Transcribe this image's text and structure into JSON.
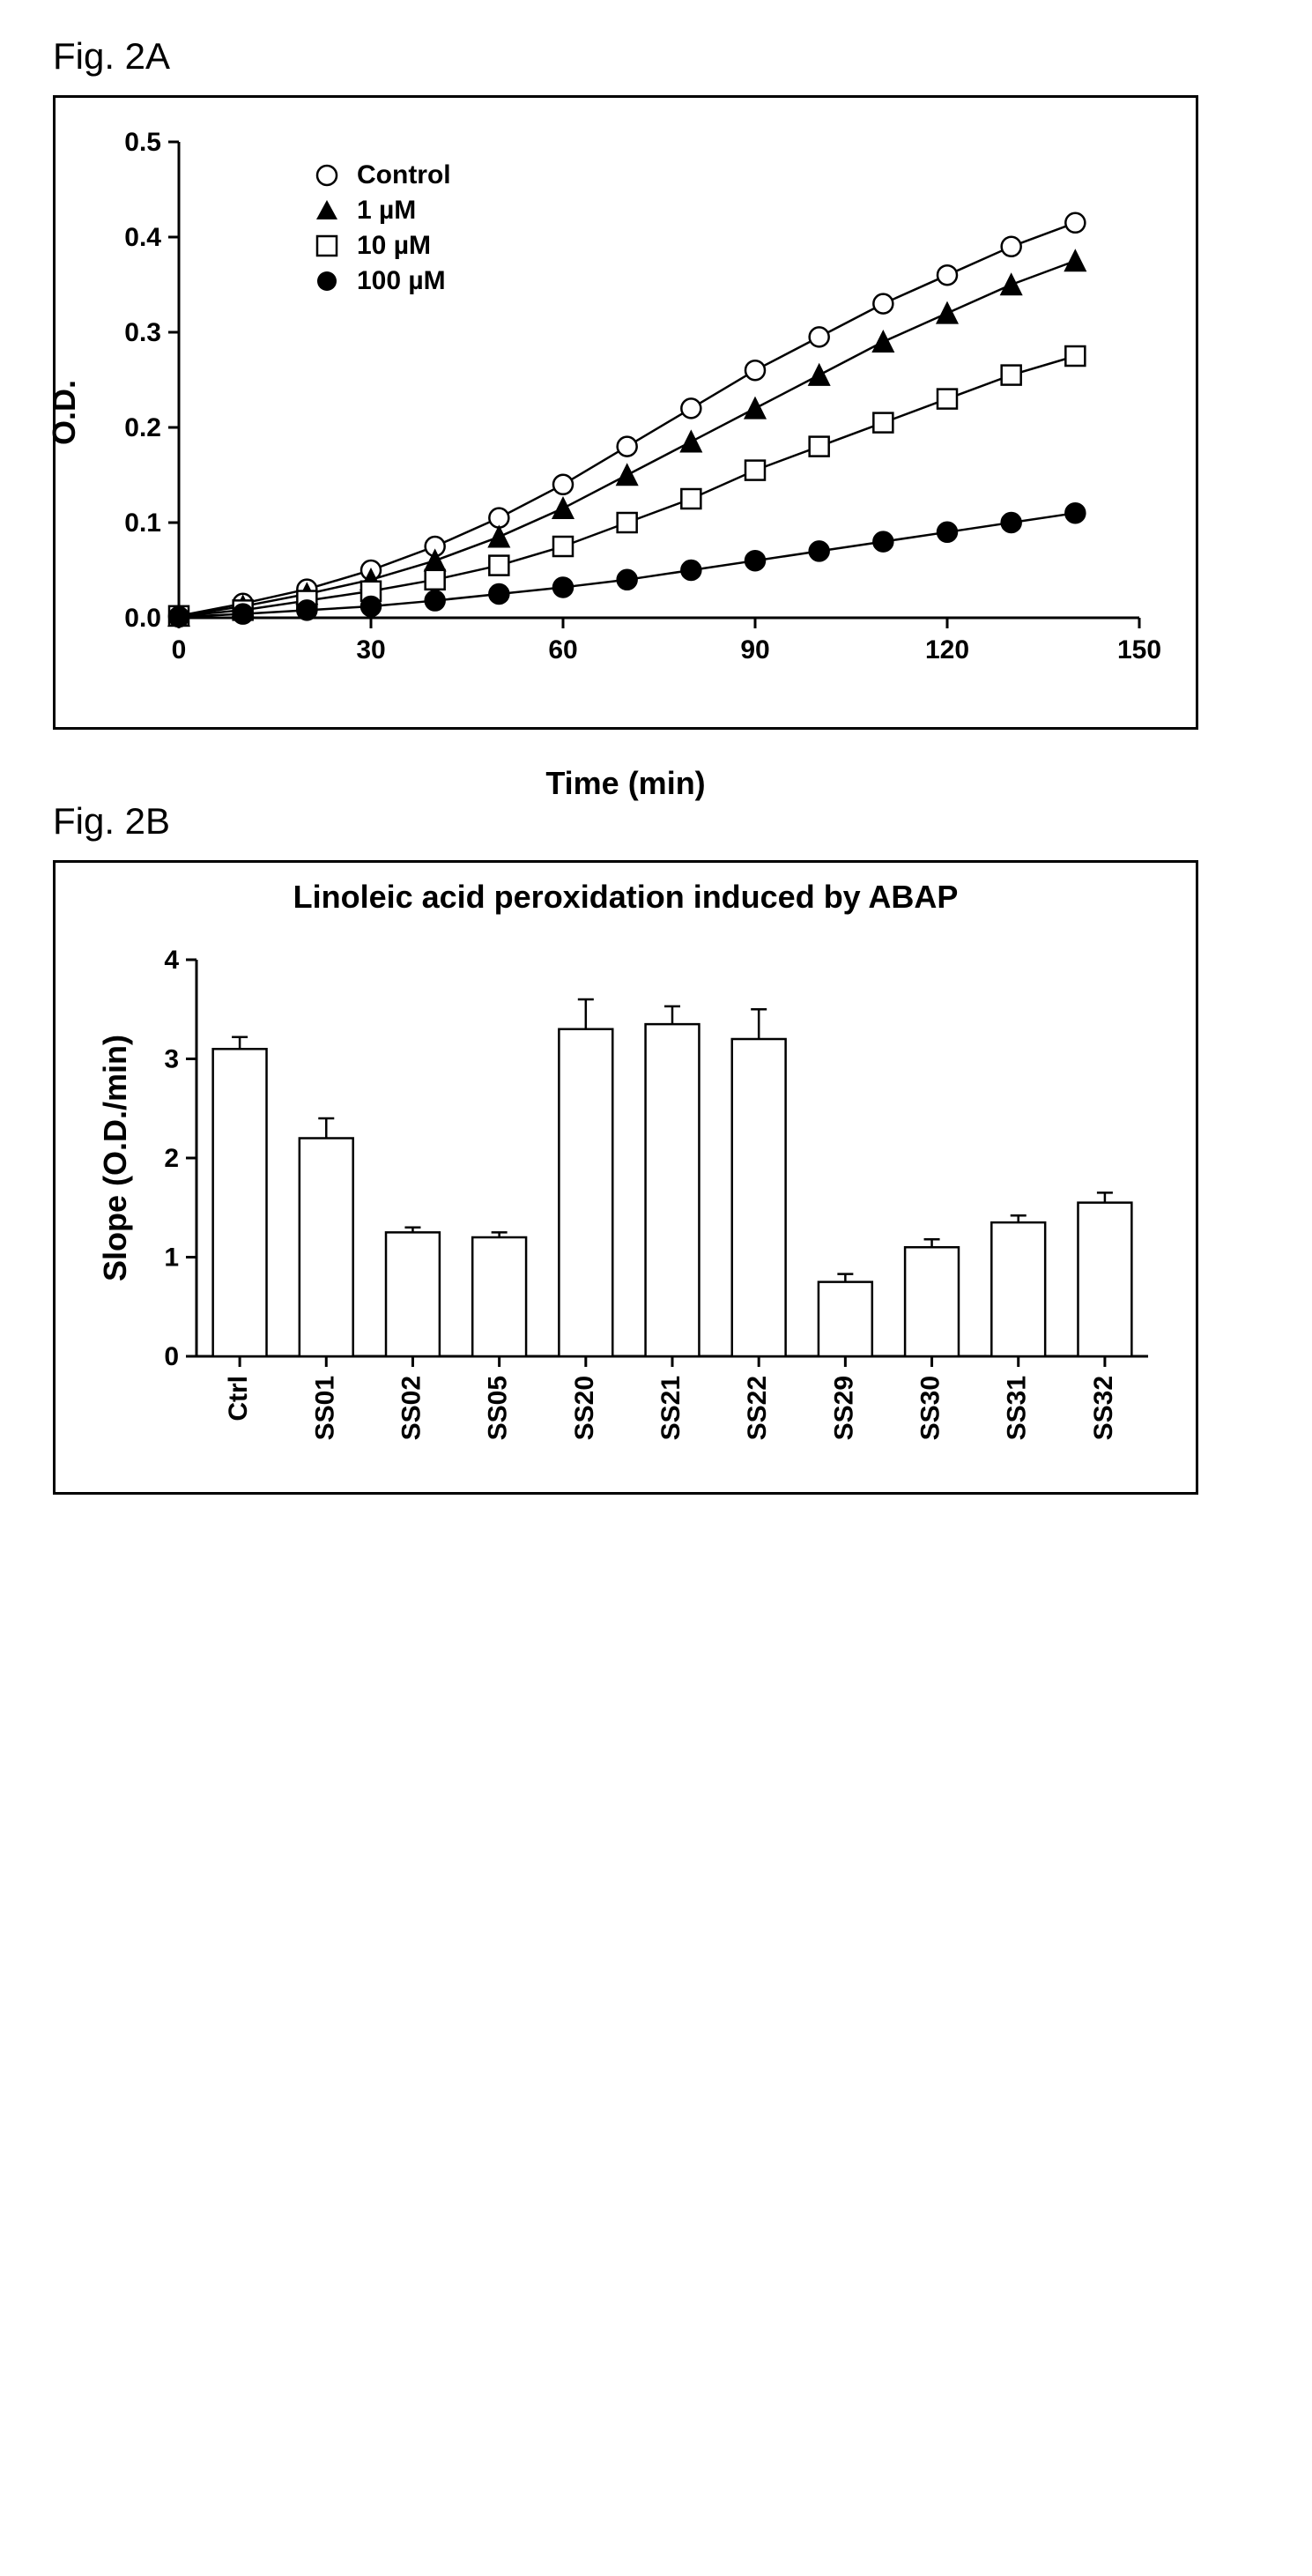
{
  "panelA": {
    "label": "Fig. 2A",
    "type": "line",
    "xlabel": "Time (min)",
    "ylabel": "O.D.",
    "xlim": [
      0,
      150
    ],
    "ylim": [
      0.0,
      0.5
    ],
    "xtick_step": 30,
    "ytick_step": 0.1,
    "xticks": [
      0,
      30,
      60,
      90,
      120,
      150
    ],
    "yticks": [
      "0.0",
      "0.1",
      "0.2",
      "0.3",
      "0.4",
      "0.5"
    ],
    "background_color": "#ffffff",
    "axis_color": "#000000",
    "axis_width": 3,
    "tick_fontsize": 30,
    "label_fontsize": 36,
    "line_width": 2.5,
    "marker_size": 11,
    "marker_stroke": 2.5,
    "series": [
      {
        "name": "Control",
        "marker": "circle",
        "fill": "#ffffff",
        "stroke": "#000000",
        "x": [
          0,
          10,
          20,
          30,
          40,
          50,
          60,
          70,
          80,
          90,
          100,
          110,
          120,
          130,
          140
        ],
        "y": [
          0.002,
          0.015,
          0.03,
          0.05,
          0.075,
          0.105,
          0.14,
          0.18,
          0.22,
          0.26,
          0.295,
          0.33,
          0.36,
          0.39,
          0.415
        ]
      },
      {
        "name": "1 µM",
        "marker": "triangle",
        "fill": "#000000",
        "stroke": "#000000",
        "x": [
          0,
          10,
          20,
          30,
          40,
          50,
          60,
          70,
          80,
          90,
          100,
          110,
          120,
          130,
          140
        ],
        "y": [
          0.002,
          0.012,
          0.025,
          0.04,
          0.06,
          0.085,
          0.115,
          0.15,
          0.185,
          0.22,
          0.255,
          0.29,
          0.32,
          0.35,
          0.375
        ]
      },
      {
        "name": "10 µM",
        "marker": "square",
        "fill": "#ffffff",
        "stroke": "#000000",
        "x": [
          0,
          10,
          20,
          30,
          40,
          50,
          60,
          70,
          80,
          90,
          100,
          110,
          120,
          130,
          140
        ],
        "y": [
          0.002,
          0.008,
          0.018,
          0.028,
          0.04,
          0.055,
          0.075,
          0.1,
          0.125,
          0.155,
          0.18,
          0.205,
          0.23,
          0.255,
          0.275
        ]
      },
      {
        "name": "100 µM",
        "marker": "circle",
        "fill": "#000000",
        "stroke": "#000000",
        "x": [
          0,
          10,
          20,
          30,
          40,
          50,
          60,
          70,
          80,
          90,
          100,
          110,
          120,
          130,
          140
        ],
        "y": [
          0.001,
          0.004,
          0.008,
          0.012,
          0.018,
          0.025,
          0.032,
          0.04,
          0.05,
          0.06,
          0.07,
          0.08,
          0.09,
          0.1,
          0.11
        ]
      }
    ],
    "legend": {
      "items": [
        "Control",
        "1 µM",
        "10 µM",
        "100 µM"
      ]
    }
  },
  "panelB": {
    "label": "Fig. 2B",
    "type": "bar",
    "title": "Linoleic acid peroxidation induced by ABAP",
    "ylabel": "Slope (O.D./min)",
    "ylim": [
      0,
      4
    ],
    "ytick_step": 1,
    "yticks": [
      0,
      1,
      2,
      3,
      4
    ],
    "background_color": "#ffffff",
    "axis_color": "#000000",
    "axis_width": 3,
    "tick_fontsize": 30,
    "label_fontsize": 36,
    "title_fontsize": 36,
    "bar_fill": "#ffffff",
    "bar_stroke": "#000000",
    "bar_stroke_width": 2.5,
    "bar_width": 0.62,
    "error_bar_width": 2.5,
    "error_cap_width": 18,
    "categories": [
      "Ctrl",
      "SS01",
      "SS02",
      "SS05",
      "SS20",
      "SS21",
      "SS22",
      "SS29",
      "SS30",
      "SS31",
      "SS32"
    ],
    "values": [
      3.1,
      2.2,
      1.25,
      1.2,
      3.3,
      3.35,
      3.2,
      0.75,
      1.1,
      1.35,
      1.55
    ],
    "errors": [
      0.12,
      0.2,
      0.05,
      0.05,
      0.3,
      0.18,
      0.3,
      0.08,
      0.08,
      0.07,
      0.1
    ]
  }
}
